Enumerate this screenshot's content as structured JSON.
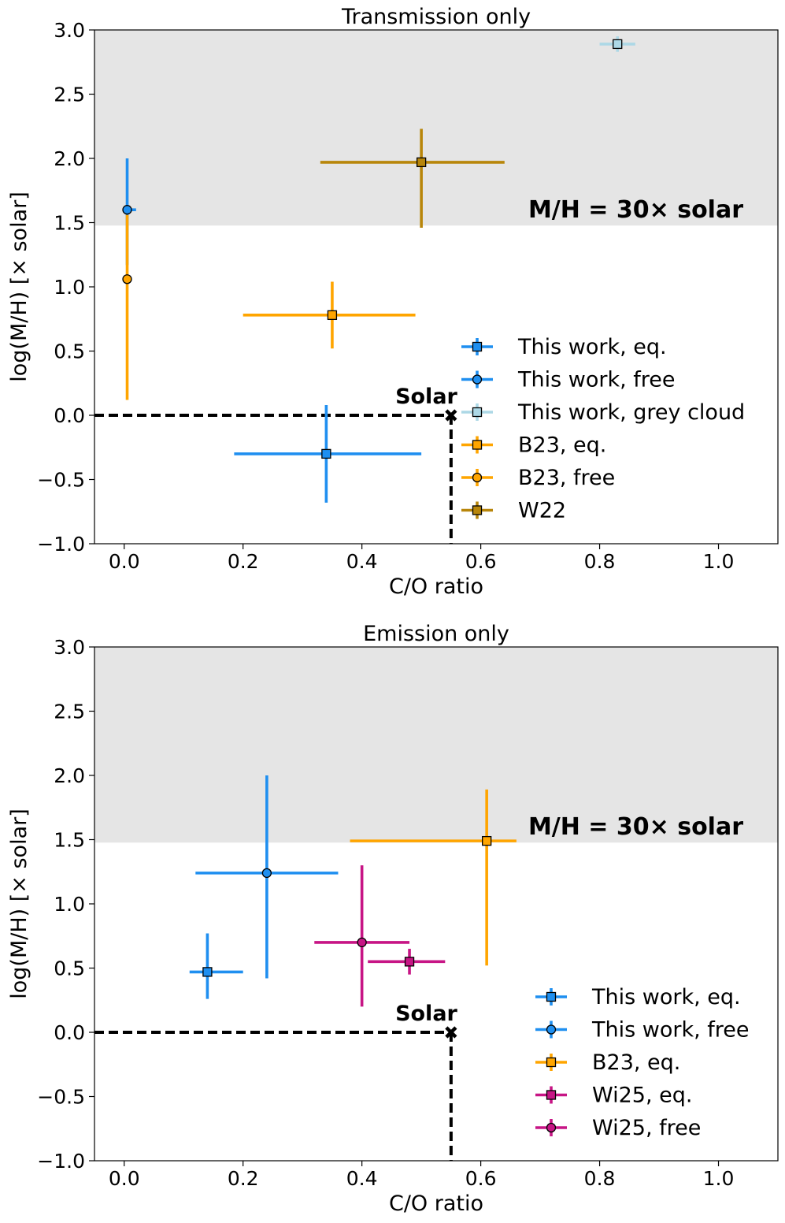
{
  "chart_data": [
    {
      "type": "scatter",
      "title": "Transmission only",
      "xlabel": "C/O ratio",
      "ylabel": "log(M/H) [× solar]",
      "xlim": [
        -0.05,
        1.1
      ],
      "ylim": [
        -1.0,
        3.0
      ],
      "xticks": [
        0.0,
        0.2,
        0.4,
        0.6,
        0.8,
        1.0
      ],
      "xtick_labels": [
        "0.0",
        "0.2",
        "0.4",
        "0.6",
        "0.8",
        "1.0"
      ],
      "yticks": [
        -1.0,
        -0.5,
        0.0,
        0.5,
        1.0,
        1.5,
        2.0,
        2.5,
        3.0
      ],
      "ytick_labels": [
        "−1.0",
        "−0.5",
        "0.0",
        "0.5",
        "1.0",
        "1.5",
        "2.0",
        "2.5",
        "3.0"
      ],
      "shaded_region": {
        "y_from": 1.477,
        "y_to": 3.0,
        "color": "#e5e5e5",
        "label": "M/H = 30× solar",
        "label_color": "#707070"
      },
      "solar": {
        "x": 0.55,
        "y": 0.0,
        "label": "Solar"
      },
      "grid": false,
      "legend_position": "lower-right",
      "series": [
        {
          "name": "This work, eq.",
          "color": "#1f8ff0",
          "marker": "square",
          "x": 0.34,
          "y": -0.3,
          "xerr": [
            0.155,
            0.16
          ],
          "yerr": [
            0.38,
            0.38
          ]
        },
        {
          "name": "This work, free",
          "color": "#1f8ff0",
          "marker": "circle",
          "x": 0.005,
          "y": 1.6,
          "xerr": [
            0.0,
            0.015
          ],
          "yerr": [
            0.43,
            0.4
          ]
        },
        {
          "name": "This work, grey cloud",
          "color": "#add8e6",
          "marker": "square",
          "x": 0.83,
          "y": 2.89,
          "xerr": [
            0.03,
            0.03
          ],
          "yerr": [
            0.06,
            0.06
          ]
        },
        {
          "name": "B23, eq.",
          "color": "#ffa500",
          "marker": "square",
          "x": 0.35,
          "y": 0.78,
          "xerr": [
            0.15,
            0.14
          ],
          "yerr": [
            0.26,
            0.26
          ]
        },
        {
          "name": "B23, free",
          "color": "#ffa500",
          "marker": "circle",
          "x": 0.005,
          "y": 1.06,
          "xerr": [
            0.0,
            0.0
          ],
          "yerr": [
            0.94,
            0.5
          ]
        },
        {
          "name": "W22",
          "color": "#b8860b",
          "marker": "square",
          "x": 0.5,
          "y": 1.97,
          "xerr": [
            0.17,
            0.14
          ],
          "yerr": [
            0.51,
            0.26
          ]
        }
      ]
    },
    {
      "type": "scatter",
      "title": "Emission only",
      "xlabel": "C/O ratio",
      "ylabel": "log(M/H) [× solar]",
      "xlim": [
        -0.05,
        1.1
      ],
      "ylim": [
        -1.0,
        3.0
      ],
      "xticks": [
        0.0,
        0.2,
        0.4,
        0.6,
        0.8,
        1.0
      ],
      "xtick_labels": [
        "0.0",
        "0.2",
        "0.4",
        "0.6",
        "0.8",
        "1.0"
      ],
      "yticks": [
        -1.0,
        -0.5,
        0.0,
        0.5,
        1.0,
        1.5,
        2.0,
        2.5,
        3.0
      ],
      "ytick_labels": [
        "−1.0",
        "−0.5",
        "0.0",
        "0.5",
        "1.0",
        "1.5",
        "2.0",
        "2.5",
        "3.0"
      ],
      "shaded_region": {
        "y_from": 1.477,
        "y_to": 3.0,
        "color": "#e5e5e5",
        "label": "M/H = 30× solar",
        "label_color": "#707070"
      },
      "solar": {
        "x": 0.55,
        "y": 0.0,
        "label": "Solar"
      },
      "grid": false,
      "legend_position": "lower-right",
      "series": [
        {
          "name": "This work, eq.",
          "color": "#1f8ff0",
          "marker": "square",
          "x": 0.14,
          "y": 0.47,
          "xerr": [
            0.03,
            0.06
          ],
          "yerr": [
            0.21,
            0.3
          ]
        },
        {
          "name": "This work, free",
          "color": "#1f8ff0",
          "marker": "circle",
          "x": 0.24,
          "y": 1.24,
          "xerr": [
            0.12,
            0.12
          ],
          "yerr": [
            0.82,
            0.76
          ]
        },
        {
          "name": "B23, eq.",
          "color": "#ffa500",
          "marker": "square",
          "x": 0.61,
          "y": 1.49,
          "xerr": [
            0.23,
            0.05
          ],
          "yerr": [
            0.97,
            0.4
          ]
        },
        {
          "name": "Wi25, eq.",
          "color": "#c71585",
          "marker": "square",
          "x": 0.48,
          "y": 0.55,
          "xerr": [
            0.07,
            0.06
          ],
          "yerr": [
            0.1,
            0.1
          ]
        },
        {
          "name": "Wi25, free",
          "color": "#c71585",
          "marker": "circle",
          "x": 0.4,
          "y": 0.7,
          "xerr": [
            0.08,
            0.08
          ],
          "yerr": [
            0.5,
            0.6
          ]
        }
      ]
    }
  ]
}
